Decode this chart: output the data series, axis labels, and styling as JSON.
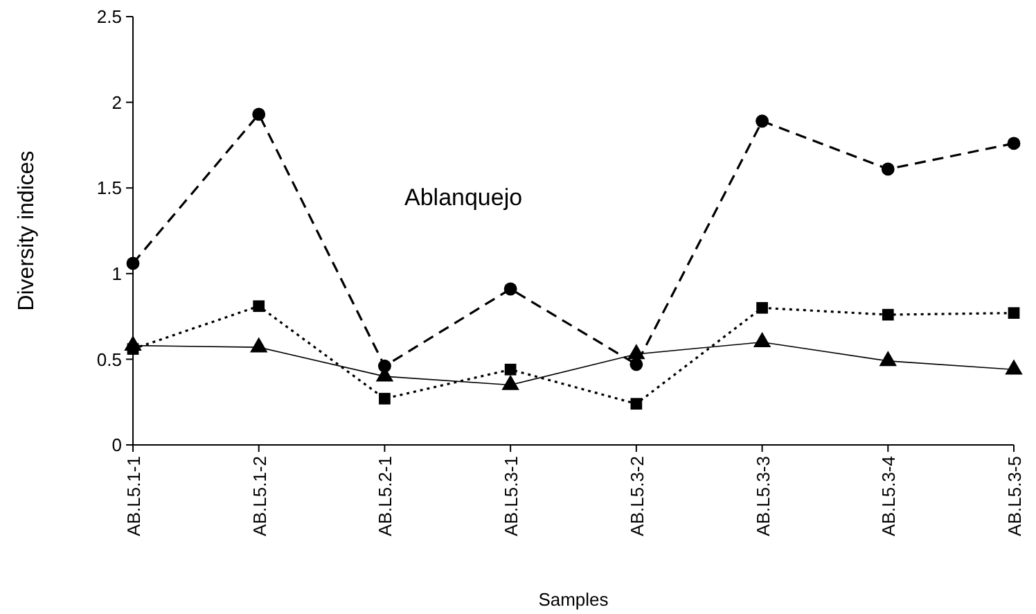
{
  "chart_data": {
    "type": "line",
    "xlabel": "Samples",
    "ylabel": "Diversity indices",
    "annotations": [
      "Ablanquejo"
    ],
    "categories": [
      "AB.L5.1-1",
      "AB.L5.1-2",
      "AB.L5.2-1",
      "AB.L5.3-1",
      "AB.L5.3-2",
      "AB.L5.3-3",
      "AB.L5.3-4",
      "AB.L5.3-5"
    ],
    "series": [
      {
        "color": "#000000",
        "marker": "circle",
        "line_style": "dashed",
        "values": [
          1.06,
          1.93,
          0.46,
          0.91,
          0.47,
          1.89,
          1.61,
          1.76
        ]
      },
      {
        "color": "#000000",
        "marker": "square",
        "line_style": "dotted",
        "values": [
          0.56,
          0.81,
          0.27,
          0.44,
          0.24,
          0.8,
          0.76,
          0.77
        ]
      },
      {
        "color": "#000000",
        "marker": "triangle",
        "line_style": "solid",
        "values": [
          0.58,
          0.57,
          0.4,
          0.35,
          0.53,
          0.6,
          0.49,
          0.44
        ]
      }
    ],
    "ylim": [
      0,
      2.5
    ],
    "yticks": [
      0,
      0.5,
      1,
      1.5,
      2,
      2.5
    ],
    "grid": false
  }
}
